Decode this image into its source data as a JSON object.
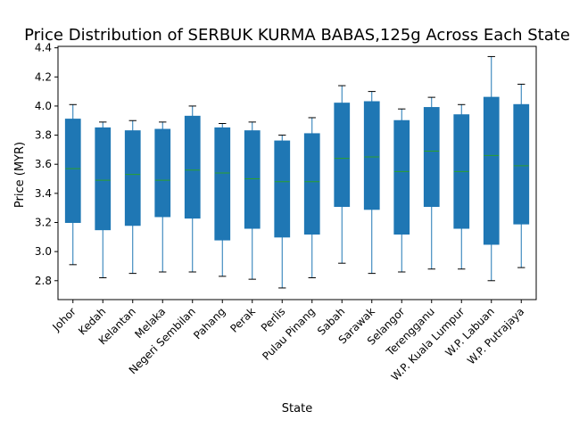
{
  "chart_data": {
    "type": "box",
    "title": "Price Distribution of SERBUK KURMA BABAS,125g Across Each State",
    "xlabel": "State",
    "ylabel": "Price (MYR)",
    "ylim": [
      2.67,
      4.41
    ],
    "yticks": [
      "2.8",
      "3.0",
      "3.2",
      "3.4",
      "3.6",
      "3.8",
      "4.0",
      "4.2",
      "4.4"
    ],
    "grid": false,
    "box_color": "#1f77b4",
    "median_color": "#2ca02c",
    "categories": [
      "Johor",
      "Kedah",
      "Kelantan",
      "Melaka",
      "Negeri Sembilan",
      "Pahang",
      "Perak",
      "Perlis",
      "Pulau Pinang",
      "Sabah",
      "Sarawak",
      "Selangor",
      "Terengganu",
      "W.P. Kuala Lumpur",
      "W.P. Labuan",
      "W.P. Putrajaya"
    ],
    "boxes": [
      {
        "whisker_low": 2.91,
        "q1": 3.2,
        "median": 3.57,
        "q3": 3.91,
        "whisker_high": 4.01
      },
      {
        "whisker_low": 2.82,
        "q1": 3.15,
        "median": 3.49,
        "q3": 3.85,
        "whisker_high": 3.89
      },
      {
        "whisker_low": 2.85,
        "q1": 3.18,
        "median": 3.53,
        "q3": 3.83,
        "whisker_high": 3.9
      },
      {
        "whisker_low": 2.86,
        "q1": 3.24,
        "median": 3.49,
        "q3": 3.84,
        "whisker_high": 3.89
      },
      {
        "whisker_low": 2.86,
        "q1": 3.23,
        "median": 3.56,
        "q3": 3.93,
        "whisker_high": 4.0
      },
      {
        "whisker_low": 2.83,
        "q1": 3.08,
        "median": 3.54,
        "q3": 3.85,
        "whisker_high": 3.88
      },
      {
        "whisker_low": 2.81,
        "q1": 3.16,
        "median": 3.5,
        "q3": 3.83,
        "whisker_high": 3.89
      },
      {
        "whisker_low": 2.75,
        "q1": 3.1,
        "median": 3.48,
        "q3": 3.76,
        "whisker_high": 3.8
      },
      {
        "whisker_low": 2.82,
        "q1": 3.12,
        "median": 3.48,
        "q3": 3.81,
        "whisker_high": 3.92
      },
      {
        "whisker_low": 2.92,
        "q1": 3.31,
        "median": 3.64,
        "q3": 4.02,
        "whisker_high": 4.14
      },
      {
        "whisker_low": 2.85,
        "q1": 3.29,
        "median": 3.65,
        "q3": 4.03,
        "whisker_high": 4.1
      },
      {
        "whisker_low": 2.86,
        "q1": 3.12,
        "median": 3.55,
        "q3": 3.9,
        "whisker_high": 3.98
      },
      {
        "whisker_low": 2.88,
        "q1": 3.31,
        "median": 3.69,
        "q3": 3.99,
        "whisker_high": 4.06
      },
      {
        "whisker_low": 2.88,
        "q1": 3.16,
        "median": 3.55,
        "q3": 3.94,
        "whisker_high": 4.01
      },
      {
        "whisker_low": 2.8,
        "q1": 3.05,
        "median": 3.66,
        "q3": 4.06,
        "whisker_high": 4.34
      },
      {
        "whisker_low": 2.89,
        "q1": 3.19,
        "median": 3.59,
        "q3": 4.01,
        "whisker_high": 4.15
      }
    ]
  }
}
